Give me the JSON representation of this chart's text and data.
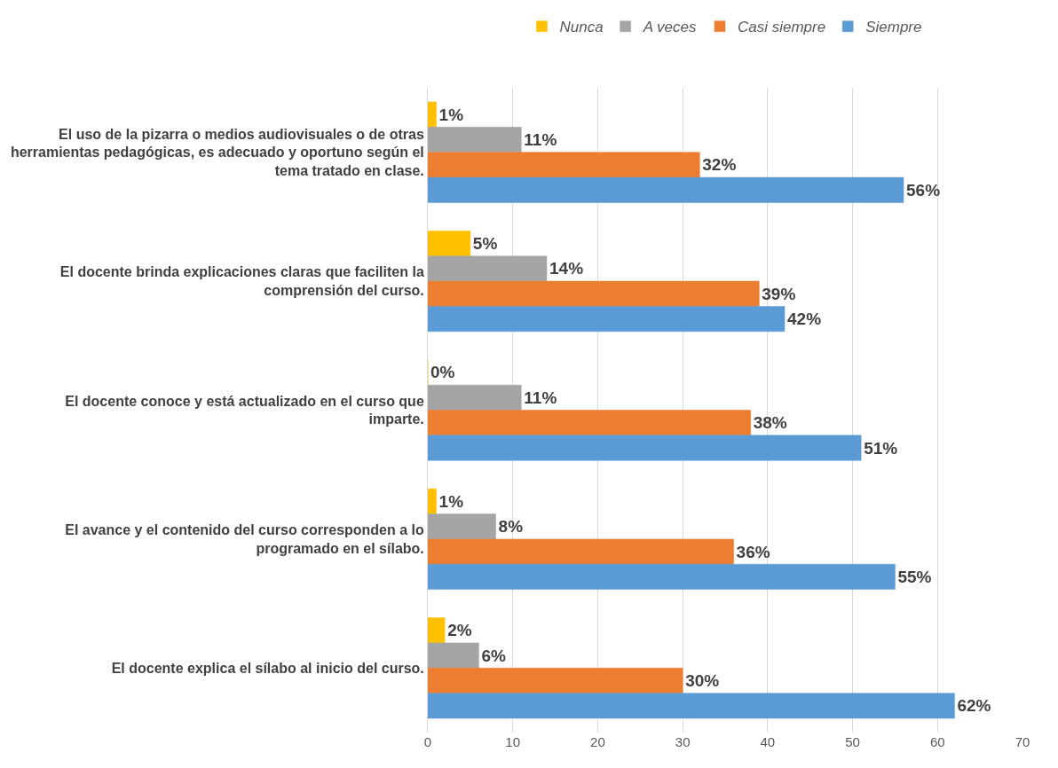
{
  "chart_data": {
    "type": "bar",
    "orientation": "horizontal",
    "categories": [
      "El uso de la pizarra o medios audiovisuales o de otras herramientas pedagógicas, es adecuado y oportuno según el tema tratado en clase.",
      "El docente brinda explicaciones claras que faciliten la comprensión del curso.",
      "El docente conoce y está actualizado en el curso que imparte.",
      "El avance y el contenido del curso corresponden a lo programado en el sílabo.",
      "El docente explica el sílabo al inicio del curso."
    ],
    "series": [
      {
        "name": "Nunca",
        "color": "#ffc000",
        "values": [
          1,
          5,
          0,
          1,
          2
        ],
        "value_labels": [
          "1%",
          "5%",
          "0%",
          "1%",
          "2%"
        ]
      },
      {
        "name": "A veces",
        "color": "#a5a5a5",
        "values": [
          11,
          14,
          11,
          8,
          6
        ],
        "value_labels": [
          "11%",
          "14%",
          "11%",
          "8%",
          "6%"
        ]
      },
      {
        "name": "Casi siempre",
        "color": "#ed7d31",
        "values": [
          32,
          39,
          38,
          36,
          30
        ],
        "value_labels": [
          "32%",
          "39%",
          "38%",
          "36%",
          "30%"
        ]
      },
      {
        "name": "Siempre",
        "color": "#5b9bd5",
        "values": [
          56,
          42,
          51,
          55,
          62
        ],
        "value_labels": [
          "56%",
          "42%",
          "51%",
          "55%",
          "62%"
        ]
      }
    ],
    "xlim": [
      0,
      70
    ],
    "xticks": [
      0,
      10,
      20,
      30,
      40,
      50,
      60,
      70
    ],
    "grid": "x",
    "legend": "top"
  }
}
